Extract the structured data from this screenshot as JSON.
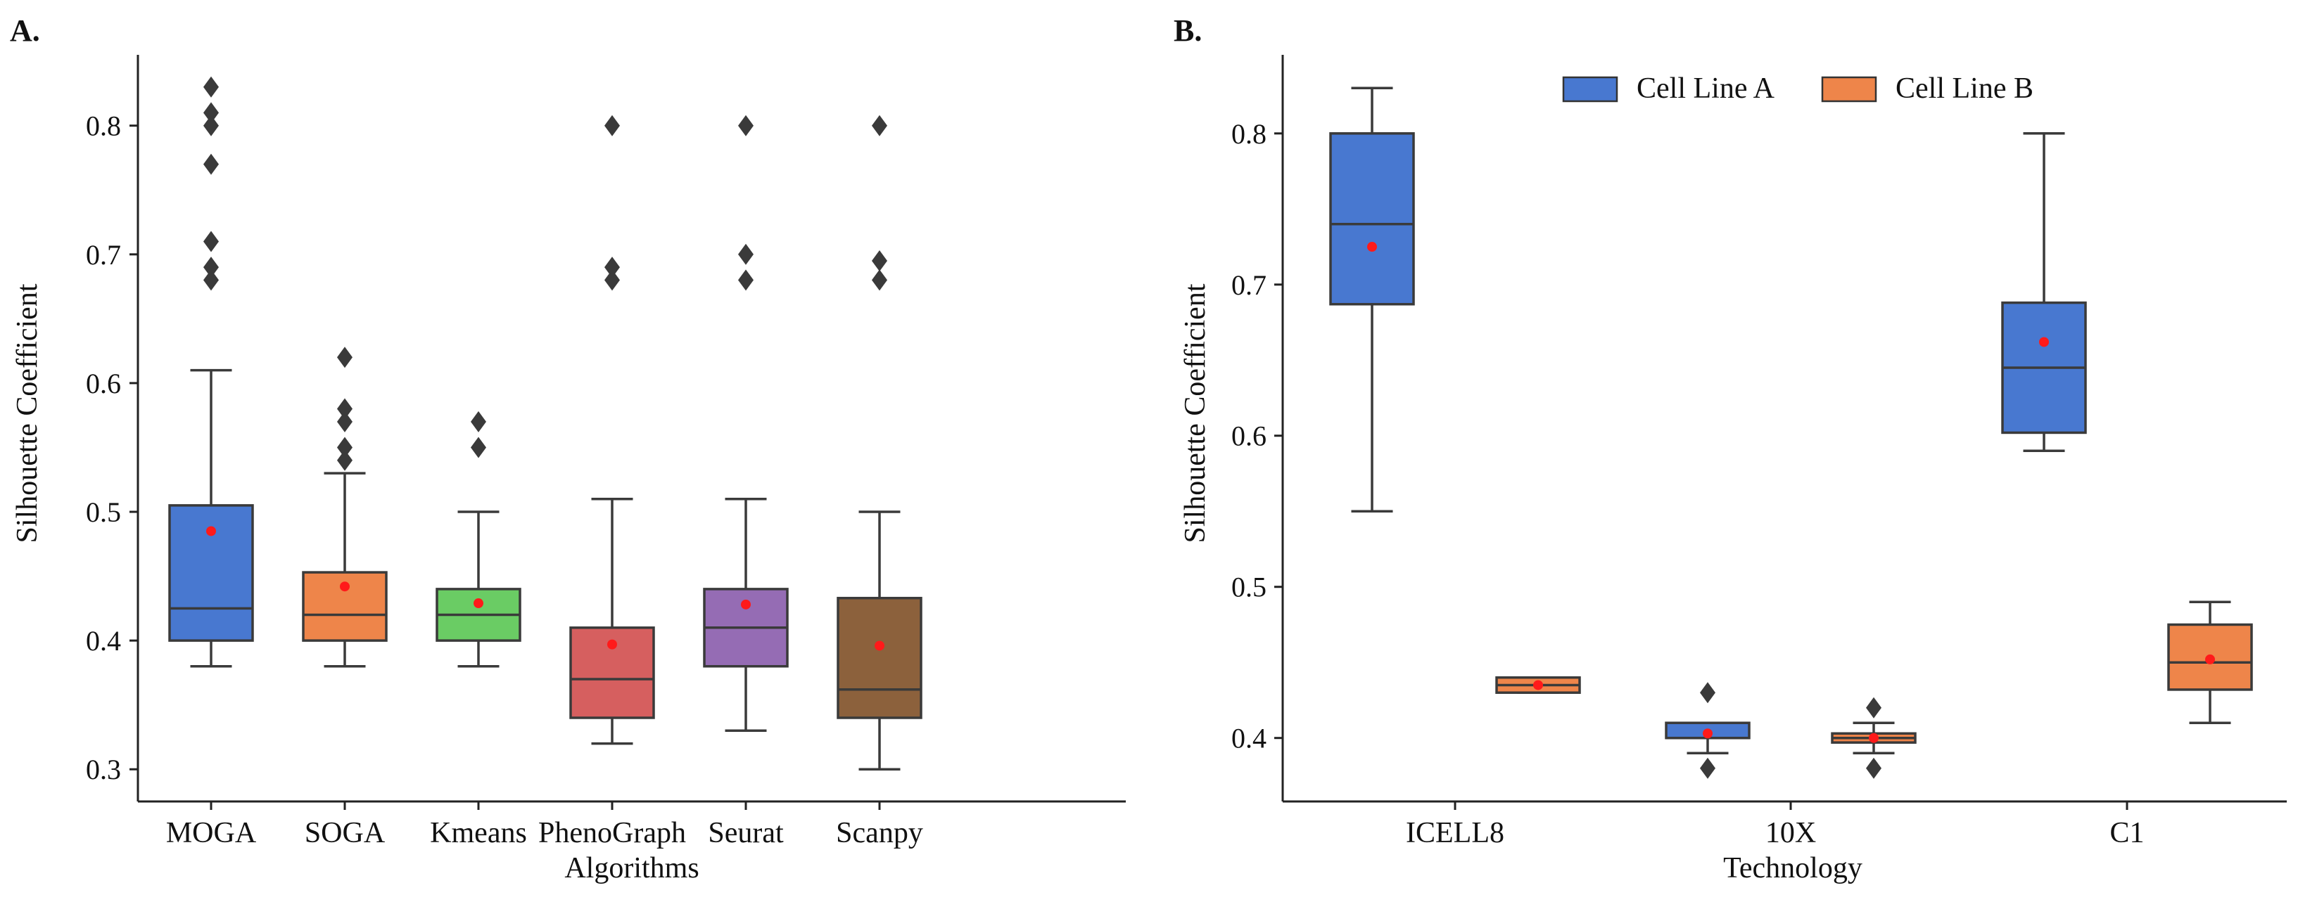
{
  "chart_data": [
    {
      "type": "box",
      "panel_label": "A.",
      "xlabel": "Algorithms",
      "ylabel": "Silhouette Coefficient",
      "ylim": [
        0.275,
        0.855
      ],
      "yticks": [
        "0.3",
        "0.4",
        "0.5",
        "0.6",
        "0.7",
        "0.8"
      ],
      "categories": [
        "MOGA",
        "SOGA",
        "Kmeans",
        "PhenoGraph",
        "Seurat",
        "Scanpy"
      ],
      "boxes": [
        {
          "name": "MOGA",
          "color": "#4878d0",
          "q1": 0.4,
          "median": 0.425,
          "q3": 0.505,
          "whisker_low": 0.38,
          "whisker_high": 0.61,
          "mean": 0.485,
          "outliers": [
            0.68,
            0.69,
            0.71,
            0.77,
            0.8,
            0.81,
            0.83
          ]
        },
        {
          "name": "SOGA",
          "color": "#ee854a",
          "q1": 0.4,
          "median": 0.42,
          "q3": 0.453,
          "whisker_low": 0.38,
          "whisker_high": 0.53,
          "mean": 0.442,
          "outliers": [
            0.54,
            0.55,
            0.57,
            0.58,
            0.62
          ]
        },
        {
          "name": "Kmeans",
          "color": "#6acc64",
          "q1": 0.4,
          "median": 0.42,
          "q3": 0.44,
          "whisker_low": 0.38,
          "whisker_high": 0.5,
          "mean": 0.429,
          "outliers": [
            0.55,
            0.57
          ]
        },
        {
          "name": "PhenoGraph",
          "color": "#d65f5f",
          "q1": 0.34,
          "median": 0.37,
          "q3": 0.41,
          "whisker_low": 0.32,
          "whisker_high": 0.51,
          "mean": 0.397,
          "outliers": [
            0.68,
            0.69,
            0.8
          ]
        },
        {
          "name": "Seurat",
          "color": "#956cb4",
          "q1": 0.38,
          "median": 0.41,
          "q3": 0.44,
          "whisker_low": 0.33,
          "whisker_high": 0.51,
          "mean": 0.428,
          "outliers": [
            0.68,
            0.7,
            0.8
          ]
        },
        {
          "name": "Scanpy",
          "color": "#8c613c",
          "q1": 0.34,
          "median": 0.362,
          "q3": 0.433,
          "whisker_low": 0.3,
          "whisker_high": 0.5,
          "mean": 0.396,
          "outliers": [
            0.68,
            0.695,
            0.8
          ]
        }
      ]
    },
    {
      "type": "box",
      "panel_label": "B.",
      "xlabel": "Technology",
      "ylabel": "Silhouette Coefficient",
      "ylim": [
        0.358,
        0.852
      ],
      "yticks": [
        "0.4",
        "0.5",
        "0.6",
        "0.7",
        "0.8"
      ],
      "categories": [
        "ICELL8",
        "10X",
        "C1"
      ],
      "legend_position": "top-center",
      "series": [
        {
          "name": "Cell Line A",
          "color": "#4878d0",
          "boxes": [
            {
              "category": "ICELL8",
              "q1": 0.687,
              "median": 0.74,
              "q3": 0.8,
              "whisker_low": 0.55,
              "whisker_high": 0.83,
              "mean": 0.725,
              "outliers": []
            },
            {
              "category": "10X",
              "q1": 0.4,
              "median": 0.4,
              "q3": 0.41,
              "whisker_low": 0.39,
              "whisker_high": 0.41,
              "mean": 0.403,
              "outliers": [
                0.38,
                0.43
              ]
            },
            {
              "category": "C1",
              "q1": 0.602,
              "median": 0.645,
              "q3": 0.688,
              "whisker_low": 0.59,
              "whisker_high": 0.8,
              "mean": 0.662,
              "outliers": []
            }
          ]
        },
        {
          "name": "Cell Line B",
          "color": "#ee854a",
          "boxes": [
            {
              "category": "ICELL8",
              "q1": 0.43,
              "median": 0.435,
              "q3": 0.44,
              "whisker_low": 0.43,
              "whisker_high": 0.44,
              "mean": 0.435,
              "outliers": []
            },
            {
              "category": "10X",
              "q1": 0.397,
              "median": 0.4,
              "q3": 0.403,
              "whisker_low": 0.39,
              "whisker_high": 0.41,
              "mean": 0.4,
              "outliers": [
                0.38,
                0.42
              ]
            },
            {
              "category": "C1",
              "q1": 0.432,
              "median": 0.45,
              "q3": 0.475,
              "whisker_low": 0.41,
              "whisker_high": 0.49,
              "mean": 0.452,
              "outliers": []
            }
          ]
        }
      ]
    }
  ]
}
